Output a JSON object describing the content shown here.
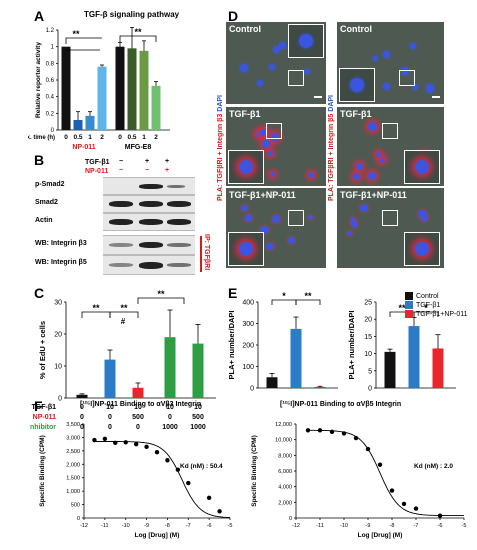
{
  "panels": {
    "A": "A",
    "B": "B",
    "C": "C",
    "D": "D",
    "E": "E",
    "F": "F"
  },
  "panelA": {
    "title": "TGF-β signaling pathway",
    "ylabel": "Relative reporter activity",
    "xrow_label": "Tx. time (h)",
    "times": [
      "0",
      "0.5",
      "1",
      "2",
      "0",
      "0.5",
      "1",
      "2"
    ],
    "group1": "NP-011",
    "group2": "MFG-E8",
    "sig": "**",
    "yticks": [
      "0",
      "0.2",
      "0.4",
      "0.6",
      "0.8",
      "1",
      "1.2"
    ]
  },
  "panelB": {
    "treat1_label": "TGF-β1",
    "treat2_label": "NP-011",
    "treat1": [
      "−",
      "+",
      "+"
    ],
    "treat2": [
      "−",
      "−",
      "+"
    ],
    "rows": [
      "p-Smad2",
      "Smad2",
      "Actin",
      "WB: Integrin β3",
      "WB: Integrin β5"
    ],
    "ip_label": "IP: TGFβRI"
  },
  "panelC": {
    "ylabel": "% of EdU + cells",
    "yticks": [
      "0",
      "10",
      "20",
      "30"
    ],
    "row1_label": "TGF-β1",
    "row2_label": "NP-011",
    "row3_label": "Inhibitor",
    "row1": [
      "0",
      "10",
      "10",
      "10",
      "10"
    ],
    "row2": [
      "0",
      "0",
      "500",
      "0",
      "500"
    ],
    "row3": [
      "0",
      "0",
      "0",
      "1000",
      "1000"
    ],
    "sig1": "**",
    "sig2": "#",
    "sig3": "**",
    "sig4": "**"
  },
  "panelD": {
    "left_side_label": "PLA: TGFβRI + Integrin β3",
    "right_side_label": "PLA: TGFβRI + Integrin β5",
    "dapi": "DAPI",
    "left": [
      "Control",
      "TGF-β1",
      "TGF-β1+NP-011"
    ],
    "right": [
      "Control",
      "TGF-β1",
      "TGF-β1+NP-011"
    ]
  },
  "panelE": {
    "ylabel": "PLA+ number/DAPI",
    "left_yticks": [
      "0",
      "100",
      "200",
      "300",
      "400"
    ],
    "right_yticks": [
      "0",
      "5",
      "10",
      "15",
      "20",
      "25"
    ],
    "sig": "*",
    "sig2": "**",
    "legend": [
      "Control",
      "TGF-β1",
      "TGF-β1+NP-011"
    ],
    "legend_np": "NP-011",
    "colors": {
      "control": "#111111",
      "tgf": "#2b7bc6",
      "np": "#e8262b"
    }
  },
  "panelF": {
    "title1": "[¹²⁵I]NP-011 Binding to αVβ3 Integrin",
    "title2": "[¹²⁵I]NP-011 Binding to αVβ5 Integrin",
    "kd1": "Kd (nM) : 50.4",
    "kd2": "Kd (nM) : 2.0",
    "xlabel": "Log [Drug] (M)",
    "ylabel": "Specific Binding (CPM)",
    "xticks": [
      "-12",
      "-11",
      "-10",
      "-9",
      "-8",
      "-7",
      "-6",
      "-5"
    ],
    "yticks1": [
      "0",
      "500",
      "1,000",
      "1,500",
      "2,000",
      "2,500",
      "3,000",
      "3,500"
    ],
    "yticks2": [
      "0",
      "2,000",
      "4,000",
      "6,000",
      "8,000",
      "10,000",
      "12,000"
    ]
  },
  "chart_data": [
    {
      "type": "bar",
      "title": "TGF-β signaling pathway",
      "ylabel": "Relative reporter activity",
      "ylim": [
        0,
        1.2
      ],
      "categories": [
        "0",
        "0.5",
        "1",
        "2",
        "0",
        "0.5",
        "1",
        "2"
      ],
      "values": [
        1.0,
        0.12,
        0.17,
        0.76,
        1.0,
        0.98,
        0.95,
        0.53
      ],
      "errors": [
        0.0,
        0.1,
        0.05,
        0.02,
        0.05,
        0.25,
        0.12,
        0.05
      ],
      "colors": [
        "#111111",
        "#1f5fb0",
        "#3a8ad0",
        "#5fb4e8",
        "#111111",
        "#3b5b2a",
        "#6a9a45",
        "#6fc070"
      ]
    },
    {
      "type": "bar",
      "ylabel": "% of EdU + cells",
      "ylim": [
        0,
        30
      ],
      "categories": [
        "1",
        "2",
        "3",
        "4",
        "5"
      ],
      "values": [
        1.0,
        12.0,
        3.2,
        19.0,
        17.0
      ],
      "errors": [
        0.3,
        3.0,
        1.5,
        8.5,
        6.0
      ],
      "colors": [
        "#111111",
        "#2b7bc6",
        "#e8262b",
        "#2e9d43",
        "#2e9d43"
      ]
    },
    {
      "type": "bar",
      "ylabel": "PLA+ number/DAPI",
      "ylim": [
        0,
        400
      ],
      "categories": [
        "Control",
        "TGF-β1",
        "TGF-β1+NP-011"
      ],
      "values": [
        50,
        275,
        5
      ],
      "errors": [
        18,
        55,
        3
      ],
      "colors": [
        "#111111",
        "#2b7bc6",
        "#e8262b"
      ]
    },
    {
      "type": "bar",
      "ylabel": "PLA+ number/DAPI",
      "ylim": [
        0,
        25
      ],
      "categories": [
        "Control",
        "TGF-β1",
        "TGF-β1+NP-011"
      ],
      "values": [
        10.5,
        18.0,
        11.5
      ],
      "errors": [
        0.8,
        2.5,
        4.0
      ],
      "colors": [
        "#111111",
        "#2b7bc6",
        "#e8262b"
      ]
    },
    {
      "type": "scatter",
      "title": "[¹²⁵I]NP-011 Binding to αVβ3 Integrin",
      "xlabel": "Log [Drug] (M)",
      "ylabel": "Specific Binding (CPM)",
      "xlim": [
        -12,
        -5
      ],
      "ylim": [
        0,
        3500
      ],
      "x": [
        -11.5,
        -11,
        -10.5,
        -10,
        -9.5,
        -9,
        -8.5,
        -8,
        -7.5,
        -7,
        -6,
        -5.5
      ],
      "y": [
        2900,
        2950,
        2800,
        2820,
        2750,
        2650,
        2450,
        2150,
        1800,
        1300,
        750,
        250
      ],
      "fit": {
        "top": 2850,
        "bottom": 0,
        "logEC50": -7.3,
        "hill": 1.0
      }
    },
    {
      "type": "scatter",
      "title": "[¹²⁵I]NP-011 Binding to αVβ5 Integrin",
      "xlabel": "Log [Drug] (M)",
      "ylabel": "Specific Binding (CPM)",
      "xlim": [
        -12,
        -5
      ],
      "ylim": [
        0,
        12000
      ],
      "x": [
        -11.5,
        -11,
        -10.5,
        -10,
        -9.5,
        -9,
        -8.5,
        -8,
        -7.5,
        -7,
        -6
      ],
      "y": [
        11200,
        11200,
        11000,
        10800,
        10200,
        8800,
        6800,
        3500,
        1800,
        1200,
        300
      ],
      "fit": {
        "top": 11200,
        "bottom": 300,
        "logEC50": -8.5,
        "hill": 1.1
      }
    }
  ]
}
